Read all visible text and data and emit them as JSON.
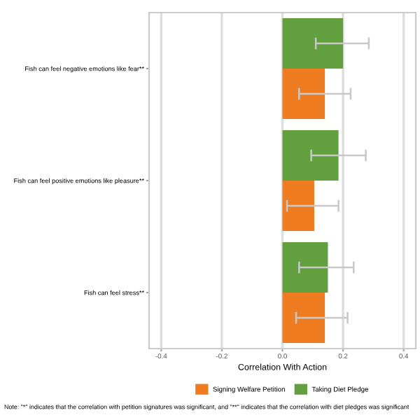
{
  "chart_data": {
    "type": "bar",
    "orientation": "horizontal",
    "xlabel": "Correlation With Action",
    "categories": [
      "Fish can feel negative emotions like fear**",
      "Fish can feel positive emotions like pleasure**",
      "Fish can feel stress**"
    ],
    "series": [
      {
        "name": "Signing Welfare Petition",
        "color": "#f07c22",
        "values": [
          0.14,
          0.105,
          0.14
        ],
        "errors": [
          [
            0.055,
            0.225
          ],
          [
            0.015,
            0.185
          ],
          [
            0.045,
            0.215
          ]
        ]
      },
      {
        "name": "Taking Diet Pledge",
        "color": "#629f3f",
        "values": [
          0.2,
          0.185,
          0.15
        ],
        "errors": [
          [
            0.11,
            0.285
          ],
          [
            0.095,
            0.275
          ],
          [
            0.055,
            0.235
          ]
        ]
      }
    ],
    "xlim": [
      -0.44,
      0.44
    ],
    "xticks": [
      {
        "value": -0.4,
        "label": "-0.4"
      },
      {
        "value": -0.2,
        "label": "-0.2"
      },
      {
        "value": 0,
        "label": "0.0"
      },
      {
        "value": 0.2,
        "label": "0.2"
      },
      {
        "value": 0.4,
        "label": "0.4"
      }
    ],
    "grid": "x",
    "legend": "bottom",
    "annotations": [
      "Note: \"*\" indicates that the correlation with petition signatures was significant, and \"**\" indicates that the correlation with diet pledges was significant"
    ]
  }
}
